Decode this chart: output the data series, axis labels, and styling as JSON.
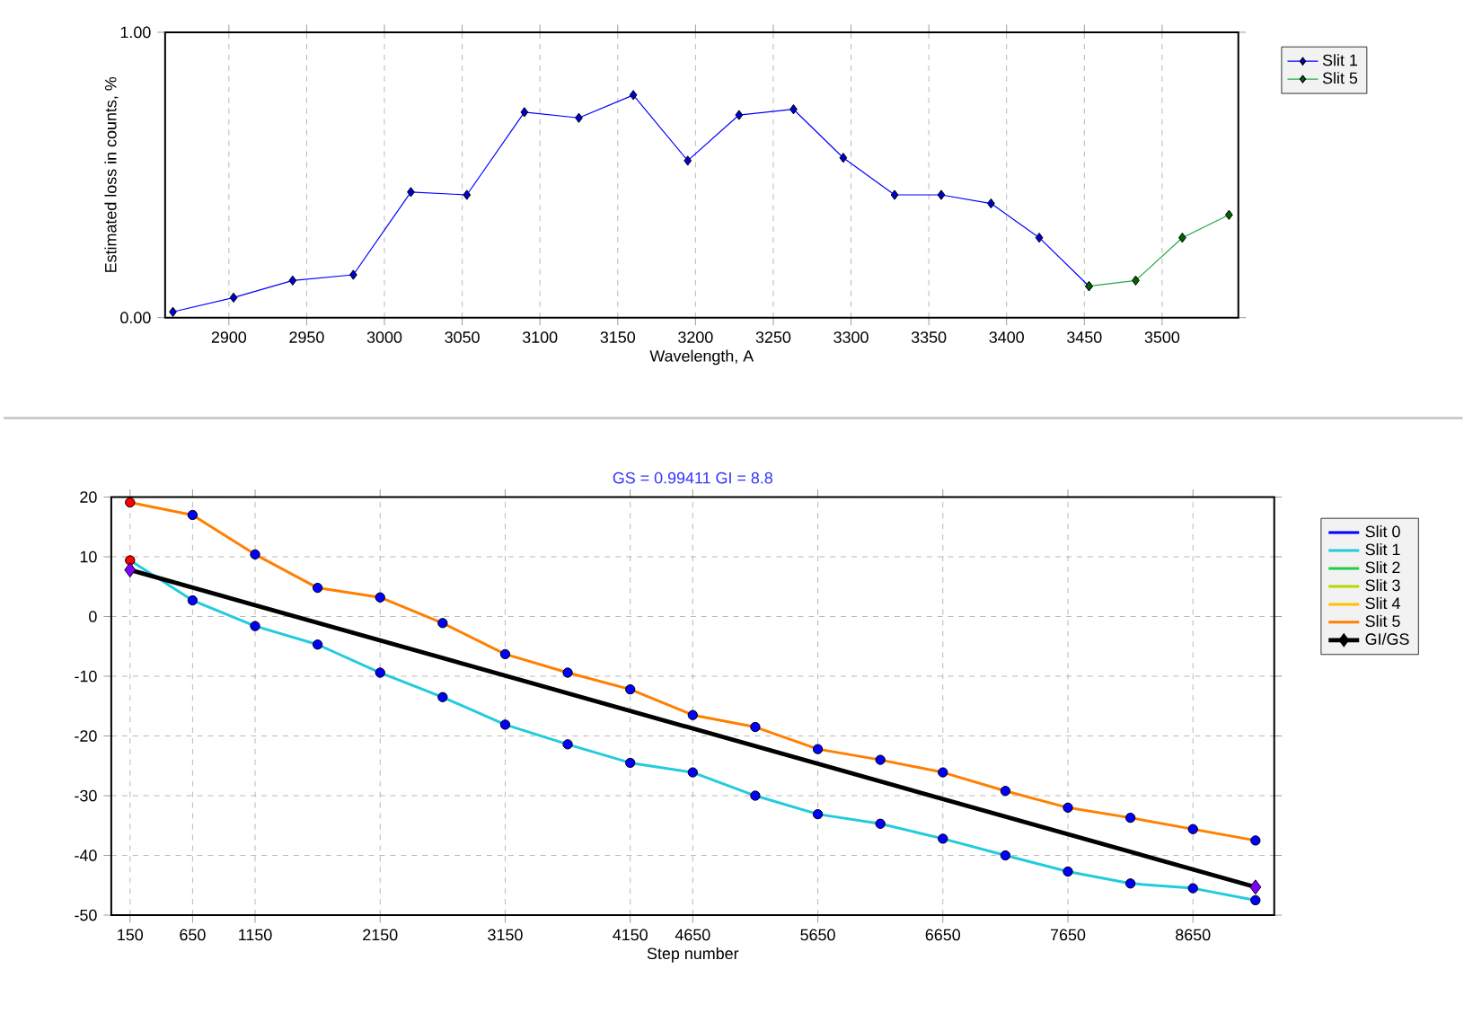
{
  "chart_data": [
    {
      "type": "line",
      "xlabel": "Wavelength, A",
      "ylabel": "Estimated loss in counts, %",
      "xlim": [
        2859,
        3549
      ],
      "ylim": [
        0,
        1
      ],
      "xticks": [
        2900,
        2950,
        3000,
        3050,
        3100,
        3150,
        3200,
        3250,
        3300,
        3350,
        3400,
        3450,
        3500
      ],
      "yticks": [
        {
          "value": 0,
          "label": "0.00"
        },
        {
          "value": 1,
          "label": "1.00"
        }
      ],
      "grid": "x",
      "legend": "top right",
      "marker": "diamond",
      "series": [
        {
          "name": "Slit 1",
          "color": "#0000ff",
          "colors": [
            "#0000cc",
            "#0000cc",
            "#0000cc",
            "#0000cc",
            "#0000cc",
            "#0000cc",
            "#0000cc",
            "#0000cc",
            "#0000cc",
            "#0000cc",
            "#0000cc",
            "#0000cc",
            "#0000cc",
            "#0000cc",
            "#0000cc",
            "#0000cc",
            "#0000cc",
            "#0000cc"
          ],
          "x": [
            2864,
            2903,
            2941,
            2980,
            3017,
            3053,
            3090,
            3125,
            3160,
            3195,
            3228,
            3263,
            3295,
            3328,
            3358,
            3390,
            3421,
            3453
          ],
          "values": [
            0.02,
            0.07,
            0.13,
            0.15,
            0.44,
            0.43,
            0.72,
            0.7,
            0.78,
            0.55,
            0.71,
            0.73,
            0.56,
            0.43,
            0.43,
            0.4,
            0.28,
            0.11
          ]
        },
        {
          "name": "Slit 5",
          "color": "#22a84a",
          "colors": [
            "#006400",
            "#006400",
            "#006400",
            "#006400"
          ],
          "x": [
            3453,
            3483,
            3513,
            3543
          ],
          "values": [
            0.11,
            0.13,
            0.28,
            0.36
          ]
        }
      ]
    },
    {
      "type": "line",
      "title": "GS = 0.99411  GI = 8.8",
      "xlabel": "Step number",
      "xlim": [
        0,
        9300
      ],
      "ylim": [
        -50,
        20
      ],
      "xticks": [
        150,
        650,
        1150,
        2150,
        3150,
        4150,
        4650,
        5650,
        6650,
        7650,
        8650
      ],
      "yticks": [
        -50,
        -40,
        -30,
        -20,
        -10,
        0,
        10,
        20
      ],
      "grid": true,
      "legend": "top right",
      "marker": "circle",
      "x": [
        150,
        650,
        1150,
        1650,
        2150,
        2650,
        3150,
        3650,
        4150,
        4650,
        5150,
        5650,
        6150,
        6650,
        7150,
        7650,
        8150,
        8650,
        9150
      ],
      "series": [
        {
          "name": "Slit 0",
          "color": "#0000ff",
          "values": [
            null,
            null,
            null,
            null,
            null,
            null,
            null,
            null,
            null,
            null,
            null,
            null,
            null,
            null,
            null,
            null,
            null,
            null,
            null
          ]
        },
        {
          "name": "Slit 1",
          "color": "#22cbdd",
          "colors": [
            "#ff0000",
            "#0000ff",
            "#0000ff",
            "#0000ff",
            "#0000ff",
            "#0000ff",
            "#0000ff",
            "#0000ff",
            "#0000ff",
            "#0000ff",
            "#0000ff",
            "#0000ff",
            "#0000ff",
            "#0000ff",
            "#0000ff",
            "#0000ff",
            "#0000ff",
            "#0000ff",
            "#0000ff"
          ],
          "values": [
            9.4,
            2.7,
            -1.6,
            -4.7,
            -9.4,
            -13.5,
            -18.1,
            -21.4,
            -24.5,
            -26.1,
            -30.0,
            -33.1,
            -34.7,
            -37.2,
            -40.0,
            -42.7,
            -44.7,
            -45.5,
            -47.5
          ]
        },
        {
          "name": "Slit 2",
          "color": "#22cc44",
          "values": [
            null,
            null,
            null,
            null,
            null,
            null,
            null,
            null,
            null,
            null,
            null,
            null,
            null,
            null,
            null,
            null,
            null,
            null,
            null
          ]
        },
        {
          "name": "Slit 3",
          "color": "#b5d800",
          "values": [
            null,
            null,
            null,
            null,
            null,
            null,
            null,
            null,
            null,
            null,
            null,
            null,
            null,
            null,
            null,
            null,
            null,
            null,
            null
          ]
        },
        {
          "name": "Slit 4",
          "color": "#ffc000",
          "values": [
            null,
            null,
            null,
            null,
            null,
            null,
            null,
            null,
            null,
            null,
            null,
            null,
            null,
            null,
            null,
            null,
            null,
            null,
            null
          ]
        },
        {
          "name": "Slit 5",
          "color": "#ff8000",
          "colors": [
            "#ff0000",
            "#0000ff",
            "#0000ff",
            "#0000ff",
            "#0000ff",
            "#0000ff",
            "#0000ff",
            "#0000ff",
            "#0000ff",
            "#0000ff",
            "#0000ff",
            "#0000ff",
            "#0000ff",
            "#0000ff",
            "#0000ff",
            "#0000ff",
            "#0000ff",
            "#0000ff",
            "#0000ff"
          ],
          "values": [
            19.1,
            17.0,
            10.4,
            4.8,
            3.2,
            -1.1,
            -6.3,
            -9.4,
            -12.2,
            -16.5,
            -18.5,
            -22.2,
            -24.0,
            -26.1,
            -29.2,
            -32.0,
            -33.7,
            -35.6,
            -37.5
          ]
        },
        {
          "name": "GI/GS",
          "color": "#000000",
          "marker": "diamond",
          "colors": [
            "#8000ff",
            "#8000ff"
          ],
          "x": [
            150,
            9150
          ],
          "values": [
            7.8,
            -45.3
          ]
        }
      ]
    }
  ]
}
